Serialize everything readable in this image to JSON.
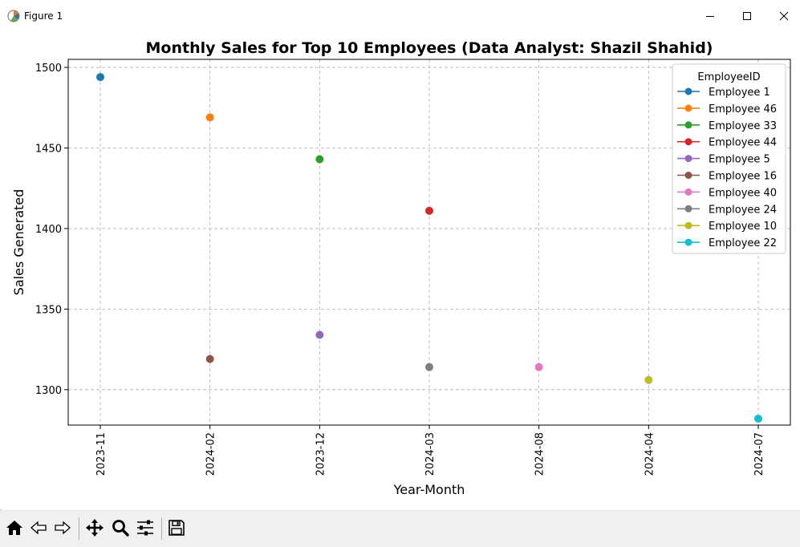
{
  "window": {
    "title": "Figure 1"
  },
  "chart_data": {
    "type": "scatter",
    "title": "Monthly Sales for Top 10 Employees (Data Analyst: Shazil Shahid)",
    "xlabel": "Year-Month",
    "ylabel": "Sales Generated",
    "categories": [
      "2023-11",
      "2024-02",
      "2023-12",
      "2024-03",
      "2024-08",
      "2024-04",
      "2024-07"
    ],
    "ylim": [
      1278,
      1505
    ],
    "yticks": [
      1300,
      1350,
      1400,
      1450,
      1500
    ],
    "grid": true,
    "legend": {
      "title": "EmployeeID",
      "placement": "upper right"
    },
    "series": [
      {
        "name": "Employee 1",
        "color": "#1f77b4",
        "points": [
          {
            "x": "2023-11",
            "y": 1494
          }
        ]
      },
      {
        "name": "Employee 46",
        "color": "#ff7f0e",
        "points": [
          {
            "x": "2024-02",
            "y": 1469
          }
        ]
      },
      {
        "name": "Employee 33",
        "color": "#2ca02c",
        "points": [
          {
            "x": "2023-12",
            "y": 1443
          }
        ]
      },
      {
        "name": "Employee 44",
        "color": "#d62728",
        "points": [
          {
            "x": "2024-03",
            "y": 1411
          }
        ]
      },
      {
        "name": "Employee 5",
        "color": "#9467bd",
        "points": [
          {
            "x": "2023-12",
            "y": 1334
          }
        ]
      },
      {
        "name": "Employee 16",
        "color": "#8c564b",
        "points": [
          {
            "x": "2024-02",
            "y": 1319
          }
        ]
      },
      {
        "name": "Employee 40",
        "color": "#e377c2",
        "points": [
          {
            "x": "2024-08",
            "y": 1314
          }
        ]
      },
      {
        "name": "Employee 24",
        "color": "#7f7f7f",
        "points": [
          {
            "x": "2024-03",
            "y": 1314
          }
        ]
      },
      {
        "name": "Employee 10",
        "color": "#bcbd22",
        "points": [
          {
            "x": "2024-04",
            "y": 1306
          }
        ]
      },
      {
        "name": "Employee 22",
        "color": "#17becf",
        "points": [
          {
            "x": "2024-07",
            "y": 1282
          }
        ]
      }
    ]
  },
  "toolbar": {
    "buttons": [
      {
        "name": "home-button",
        "icon": "home-icon"
      },
      {
        "name": "back-button",
        "icon": "arrow-left-icon"
      },
      {
        "name": "forward-button",
        "icon": "arrow-right-icon"
      },
      {
        "name": "pan-button",
        "icon": "move-icon"
      },
      {
        "name": "zoom-button",
        "icon": "magnifier-icon"
      },
      {
        "name": "configure-subplots-button",
        "icon": "sliders-icon"
      },
      {
        "name": "save-button",
        "icon": "floppy-disk-icon"
      }
    ]
  }
}
